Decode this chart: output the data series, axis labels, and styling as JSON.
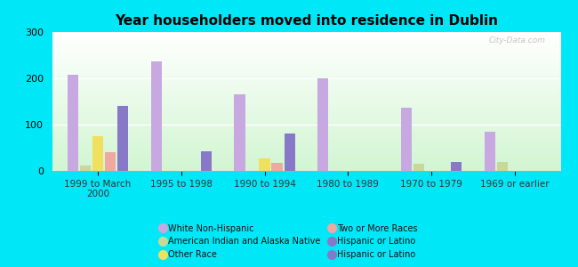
{
  "title": "Year householders moved into residence in Dublin",
  "categories": [
    "1999 to March\n2000",
    "1995 to 1998",
    "1990 to 1994",
    "1980 to 1989",
    "1970 to 1979",
    "1969 or earlier"
  ],
  "series": {
    "White Non-Hispanic": [
      207,
      237,
      165,
      200,
      137,
      85
    ],
    "Other Race": [
      75,
      0,
      27,
      0,
      0,
      0
    ],
    "American Indian and Alaska Native": [
      12,
      0,
      0,
      0,
      15,
      20
    ],
    "Two or More Races": [
      40,
      0,
      18,
      0,
      0,
      0
    ],
    "Hispanic or Latino": [
      140,
      42,
      80,
      0,
      20,
      0
    ]
  },
  "colors": {
    "White Non-Hispanic": "#c8a8e0",
    "Other Race": "#f0e060",
    "American Indian and Alaska Native": "#c8d898",
    "Two or More Races": "#f0a8a0",
    "Hispanic or Latino": "#8878c8"
  },
  "bar_order": [
    "White Non-Hispanic",
    "American Indian and Alaska Native",
    "Other Race",
    "Two or More Races",
    "Hispanic or Latino"
  ],
  "ylim": [
    0,
    300
  ],
  "yticks": [
    0,
    100,
    200,
    300
  ],
  "background_outer": "#00e8f8",
  "watermark": "City-Data.com",
  "legend_col1": [
    "White Non-Hispanic",
    "Other Race",
    "Hispanic or Latino"
  ],
  "legend_col2": [
    "American Indian and Alaska Native",
    "Two or More Races"
  ]
}
